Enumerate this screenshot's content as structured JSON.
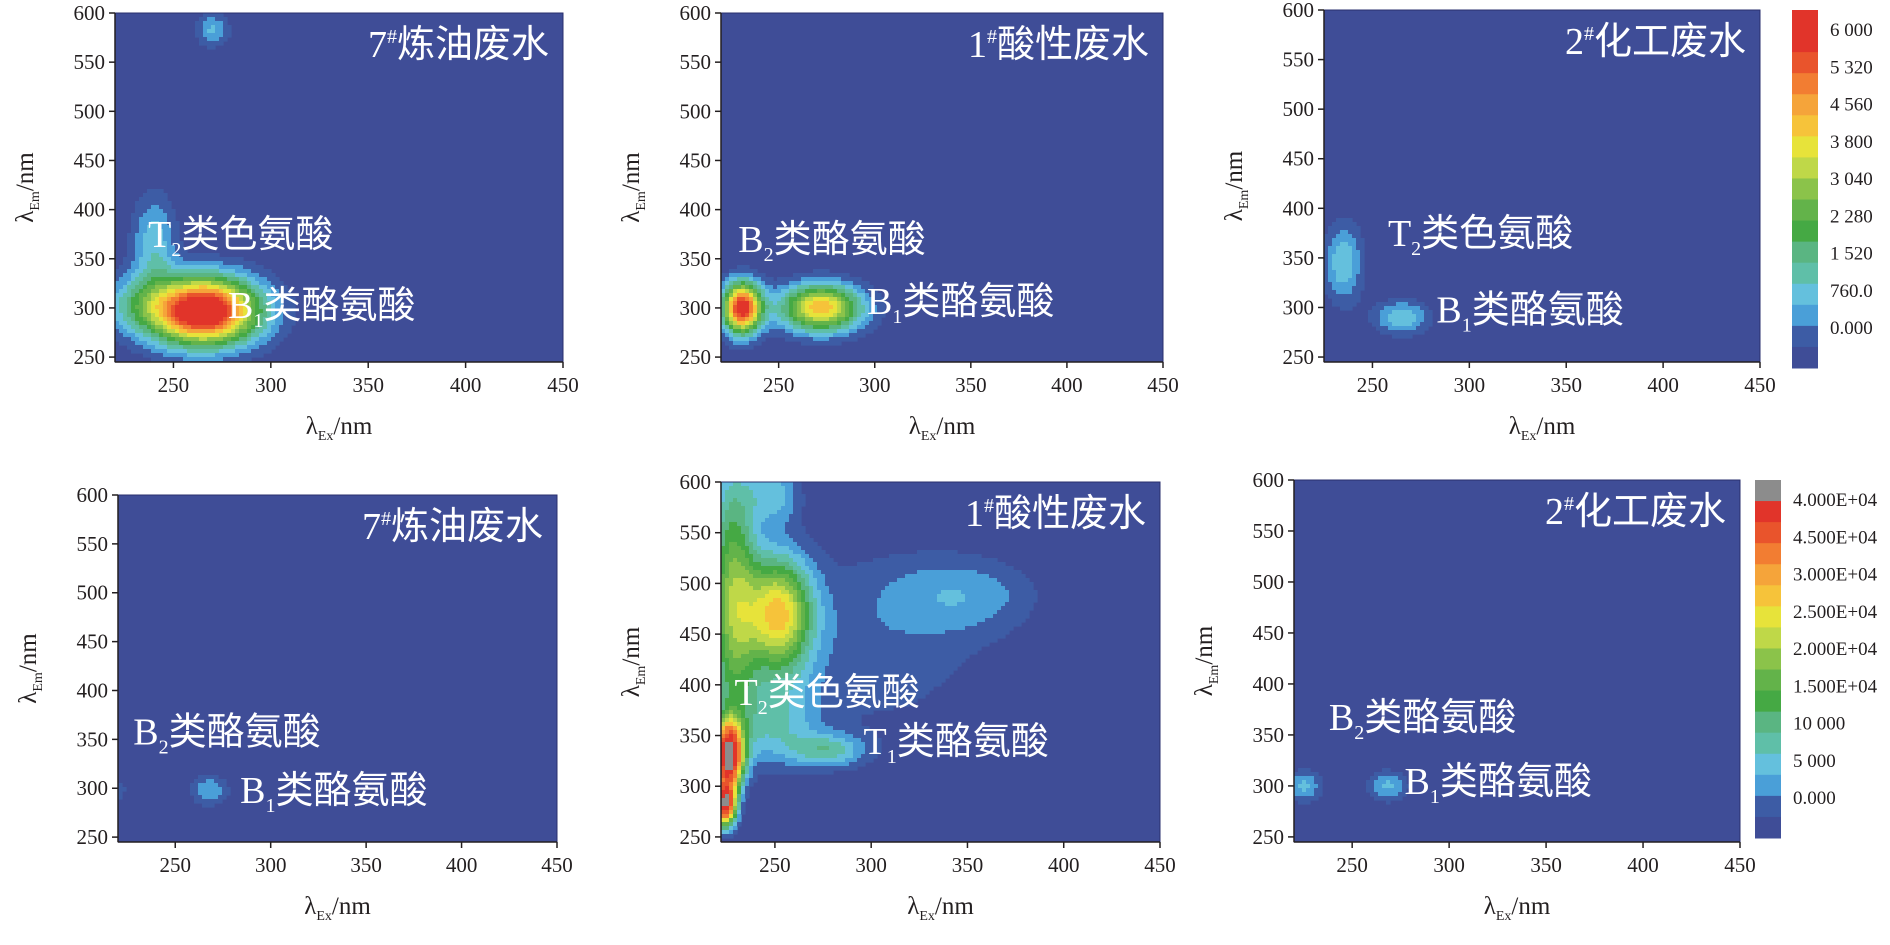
{
  "chart_data": [
    {
      "type": "heatmap",
      "title": "7#炼油废水",
      "title_main": "7",
      "title_sup": "#",
      "title_rest": "炼油废水",
      "xlabel": "λEx/nm",
      "ylabel": "λEm/nm",
      "xlim": [
        220,
        450
      ],
      "ylim": [
        245,
        600
      ],
      "xticks": [
        250,
        300,
        350,
        400,
        450
      ],
      "yticks": [
        250,
        300,
        350,
        400,
        450,
        500,
        550,
        600
      ],
      "colorbar": 1,
      "annotations": [
        {
          "main": "T",
          "sub": "2",
          "rest": "类色氨酸",
          "x": 237,
          "y": 362
        },
        {
          "main": "B",
          "sub": "1",
          "rest": "类酪氨酸",
          "x": 278,
          "y": 290
        }
      ],
      "peaks": [
        {
          "ex": 270,
          "em": 583,
          "intensity": 1200,
          "sx": 6,
          "sy": 12
        },
        {
          "ex": 240,
          "em": 365,
          "intensity": 1400,
          "sx": 8,
          "sy": 35
        },
        {
          "ex": 265,
          "em": 297,
          "intensity": 7000,
          "sx": 20,
          "sy": 24
        },
        {
          "ex": 228,
          "em": 305,
          "intensity": 900,
          "sx": 12,
          "sy": 20
        }
      ]
    },
    {
      "type": "heatmap",
      "title": "1#酸性废水",
      "title_main": "1",
      "title_sup": "#",
      "title_rest": "酸性废水",
      "xlabel": "λEx/nm",
      "ylabel": "λEm/nm",
      "xlim": [
        220,
        450
      ],
      "ylim": [
        245,
        600
      ],
      "xticks": [
        250,
        300,
        350,
        400,
        450
      ],
      "yticks": [
        250,
        300,
        350,
        400,
        450,
        500,
        550,
        600
      ],
      "colorbar": 1,
      "annotations": [
        {
          "main": "B",
          "sub": "2",
          "rest": "类酪氨酸",
          "x": 229,
          "y": 357
        },
        {
          "main": "B",
          "sub": "1",
          "rest": "类酪氨酸",
          "x": 296,
          "y": 294
        }
      ],
      "peaks": [
        {
          "ex": 231,
          "em": 300,
          "intensity": 6200,
          "sx": 7,
          "sy": 18
        },
        {
          "ex": 272,
          "em": 300,
          "intensity": 4500,
          "sx": 15,
          "sy": 17
        }
      ]
    },
    {
      "type": "heatmap",
      "title": "2#化工废水",
      "title_main": "2",
      "title_sup": "#",
      "title_rest": "化工废水",
      "xlabel": "λEx/nm",
      "ylabel": "λEm/nm",
      "xlim": [
        225,
        450
      ],
      "ylim": [
        245,
        600
      ],
      "xticks": [
        250,
        300,
        350,
        400,
        450
      ],
      "yticks": [
        250,
        300,
        350,
        400,
        450,
        500,
        550,
        600
      ],
      "colorbar": 1,
      "annotations": [
        {
          "main": "T",
          "sub": "2",
          "rest": "类色氨酸",
          "x": 258,
          "y": 362
        },
        {
          "main": "B",
          "sub": "1",
          "rest": "类酪氨酸",
          "x": 283,
          "y": 285
        }
      ],
      "peaks": [
        {
          "ex": 235,
          "em": 345,
          "intensity": 1500,
          "sx": 7,
          "sy": 28
        },
        {
          "ex": 265,
          "em": 290,
          "intensity": 1500,
          "sx": 10,
          "sy": 12
        }
      ]
    },
    {
      "type": "heatmap",
      "title": "7#炼油废水",
      "title_main": "7",
      "title_sup": "#",
      "title_rest": "炼油废水",
      "xlabel": "λEx/nm",
      "ylabel": "λEm/nm",
      "xlim": [
        220,
        450
      ],
      "ylim": [
        245,
        600
      ],
      "xticks": [
        250,
        300,
        350,
        400,
        450
      ],
      "yticks": [
        250,
        300,
        350,
        400,
        450,
        500,
        550,
        600
      ],
      "colorbar": 2,
      "annotations": [
        {
          "main": "B",
          "sub": "2",
          "rest": "类酪氨酸",
          "x": 228,
          "y": 345
        },
        {
          "main": "B",
          "sub": "1",
          "rest": "类酪氨酸",
          "x": 284,
          "y": 285
        }
      ],
      "peaks": [
        {
          "ex": 220,
          "em": 298,
          "intensity": 7000,
          "sx": 4,
          "sy": 12
        },
        {
          "ex": 268,
          "em": 298,
          "intensity": 9500,
          "sx": 9,
          "sy": 14
        }
      ]
    },
    {
      "type": "heatmap",
      "title": "1#酸性废水",
      "title_main": "1",
      "title_sup": "#",
      "title_rest": "酸性废水",
      "xlabel": "λEx/nm",
      "ylabel": "λEm/nm",
      "xlim": [
        222,
        450
      ],
      "ylim": [
        245,
        600
      ],
      "xticks": [
        250,
        300,
        350,
        400,
        450
      ],
      "yticks": [
        250,
        300,
        350,
        400,
        450,
        500,
        550,
        600
      ],
      "colorbar": 2,
      "annotations": [
        {
          "main": "T",
          "sub": "2",
          "rest": "类色氨酸",
          "x": 229,
          "y": 380
        },
        {
          "main": "T",
          "sub": "1",
          "rest": "类酪氨酸",
          "x": 296,
          "y": 332
        }
      ],
      "peaks": [
        {
          "ex": 226,
          "em": 330,
          "intensity": 50000,
          "sx": 5,
          "sy": 22
        },
        {
          "ex": 224,
          "em": 282,
          "intensity": 45000,
          "sx": 4,
          "sy": 15
        },
        {
          "ex": 228,
          "em": 490,
          "intensity": 20000,
          "sx": 9,
          "sy": 100
        },
        {
          "ex": 252,
          "em": 470,
          "intensity": 27000,
          "sx": 12,
          "sy": 40
        },
        {
          "ex": 250,
          "em": 590,
          "intensity": 10000,
          "sx": 10,
          "sy": 22
        },
        {
          "ex": 278,
          "em": 335,
          "intensity": 10500,
          "sx": 14,
          "sy": 12
        },
        {
          "ex": 300,
          "em": 440,
          "intensity": 6500,
          "sx": 60,
          "sy": 90
        },
        {
          "ex": 350,
          "em": 490,
          "intensity": 6000,
          "sx": 30,
          "sy": 28
        },
        {
          "ex": 250,
          "em": 360,
          "intensity": 9000,
          "sx": 16,
          "sy": 30
        }
      ]
    },
    {
      "type": "heatmap",
      "title": "2#化工废水",
      "title_main": "2",
      "title_sup": "#",
      "title_rest": "化工废水",
      "xlabel": "λEx/nm",
      "ylabel": "λEm/nm",
      "xlim": [
        220,
        450
      ],
      "ylim": [
        245,
        600
      ],
      "xticks": [
        250,
        300,
        350,
        400,
        450
      ],
      "yticks": [
        250,
        300,
        350,
        400,
        450,
        500,
        550,
        600
      ],
      "colorbar": 2,
      "annotations": [
        {
          "main": "B",
          "sub": "2",
          "rest": "类酪氨酸",
          "x": 238,
          "y": 355
        },
        {
          "main": "B",
          "sub": "1",
          "rest": "类酪氨酸",
          "x": 277,
          "y": 292
        }
      ],
      "peaks": [
        {
          "ex": 225,
          "em": 300,
          "intensity": 10500,
          "sx": 8,
          "sy": 14
        },
        {
          "ex": 268,
          "em": 300,
          "intensity": 10500,
          "sx": 9,
          "sy": 13
        }
      ]
    }
  ],
  "colorbars": [
    {
      "labels": [
        "6 000",
        "5 320",
        "4 560",
        "3 800",
        "3 040",
        "2 280",
        "1 520",
        "760.0",
        "0.000"
      ],
      "thresholds": [
        0,
        380,
        760,
        1140,
        1520,
        1900,
        2280,
        2660,
        3040,
        3420,
        3800,
        4180,
        4560,
        4940,
        5320,
        5700,
        6080
      ],
      "colors": [
        "#3f4d97",
        "#3d5ca5",
        "#4a9fd8",
        "#64c0dd",
        "#5fbfa8",
        "#5ab582",
        "#45a944",
        "#63b34a",
        "#8bc34a",
        "#bfd848",
        "#e7e33a",
        "#f6c33a",
        "#f5a43a",
        "#f27d32",
        "#e9542c",
        "#e1342a",
        "#e1342a"
      ]
    },
    {
      "labels": [
        "4.000E+04",
        "4.500E+04",
        "3.000E+04",
        "2.500E+04",
        "2.000E+04",
        "1.500E+04",
        "10 000",
        "5 000",
        "0.000"
      ],
      "thresholds": [
        0,
        5000,
        7500,
        10000,
        12500,
        15000,
        17500,
        20000,
        22500,
        25000,
        27500,
        30000,
        32500,
        35000,
        40000,
        45000,
        50000
      ],
      "colors": [
        "#3f4d97",
        "#3d5ca5",
        "#4a9fd8",
        "#64c0dd",
        "#5fbfa8",
        "#5ab582",
        "#45a944",
        "#63b34a",
        "#8bc34a",
        "#bfd848",
        "#e7e33a",
        "#f6c33a",
        "#f5a43a",
        "#f27d32",
        "#e9542c",
        "#e1342a",
        "#8c8c8c"
      ]
    }
  ]
}
